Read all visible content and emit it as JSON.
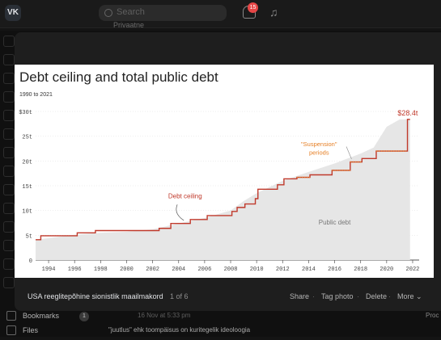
{
  "app": {
    "logo": "VK",
    "search_placeholder": "Search",
    "notifications_count": "15",
    "bg_post_label": "Privaatne"
  },
  "sidebar_bottom": {
    "items": [
      {
        "label": "Bookmarks",
        "icon": "bookmark-icon"
      },
      {
        "label": "Files",
        "icon": "file-icon"
      }
    ],
    "badge": "1"
  },
  "feed_bottom": {
    "meta": "16 Nov at 5:33 pm",
    "text": "\"juutlus\" ehk toompäisus on kuritegelik ideoloogia",
    "side_label": "Proc"
  },
  "viewer": {
    "caption": "USA reeglitepõhine sionistlik maailmakord",
    "counter": "1 of 6",
    "actions": [
      "Share",
      "Tag photo",
      "Delete",
      "More"
    ]
  },
  "chart_data": {
    "type": "area",
    "title": "Debt ceiling and total public debt",
    "subtitle": "1990 to 2021",
    "y_ticks": [
      "0",
      "5t",
      "10t",
      "15t",
      "20t",
      "25t",
      "$30t"
    ],
    "x_ticks": [
      "1994",
      "1996",
      "1998",
      "2000",
      "2002",
      "2004",
      "2006",
      "2008",
      "2010",
      "2012",
      "2014",
      "2016",
      "2018",
      "2020",
      "2022"
    ],
    "xlim": [
      1993,
      2022.5
    ],
    "ylim": [
      0,
      30
    ],
    "annotations": {
      "debt_ceiling": "Debt ceiling",
      "suspension": "\"Suspension\"",
      "suspension_2": "periods",
      "public_debt": "Public debt",
      "final_value": "$28.4t"
    },
    "colors": {
      "ceiling": "#c0392b",
      "suspension": "#e67e22",
      "area": "#e6e6e6"
    },
    "debt_ceiling": [
      [
        1993,
        4.1
      ],
      [
        1993.4,
        4.9
      ],
      [
        1996.2,
        5.5
      ],
      [
        1997.6,
        5.95
      ],
      [
        2002.5,
        6.4
      ],
      [
        2003.4,
        7.38
      ],
      [
        2004.9,
        8.18
      ],
      [
        2006.2,
        8.97
      ],
      [
        2008.1,
        9.82
      ],
      [
        2008.5,
        10.62
      ],
      [
        2009.1,
        11.32
      ],
      [
        2009.9,
        12.39
      ],
      [
        2010.1,
        14.29
      ],
      [
        2011.6,
        15.19
      ],
      [
        2012.1,
        16.39
      ],
      [
        2013.1,
        16.7
      ],
      [
        2014.1,
        17.2
      ],
      [
        2015.8,
        18.1
      ],
      [
        2017.2,
        19.8
      ],
      [
        2018.1,
        20.5
      ],
      [
        2019.2,
        22.0
      ],
      [
        2021.5,
        22.0
      ],
      [
        2021.6,
        28.4
      ],
      [
        2021.8,
        28.4
      ]
    ],
    "public_debt": [
      [
        1993,
        4.1
      ],
      [
        1996,
        5.1
      ],
      [
        1998,
        5.5
      ],
      [
        2000,
        5.7
      ],
      [
        2002,
        6.2
      ],
      [
        2004,
        7.4
      ],
      [
        2006,
        8.5
      ],
      [
        2008,
        10.0
      ],
      [
        2009,
        11.9
      ],
      [
        2010,
        13.5
      ],
      [
        2012,
        16.0
      ],
      [
        2014,
        17.8
      ],
      [
        2016,
        19.5
      ],
      [
        2018,
        21.5
      ],
      [
        2019,
        22.7
      ],
      [
        2020,
        26.9
      ],
      [
        2021,
        28.4
      ],
      [
        2021.8,
        28.4
      ]
    ]
  }
}
